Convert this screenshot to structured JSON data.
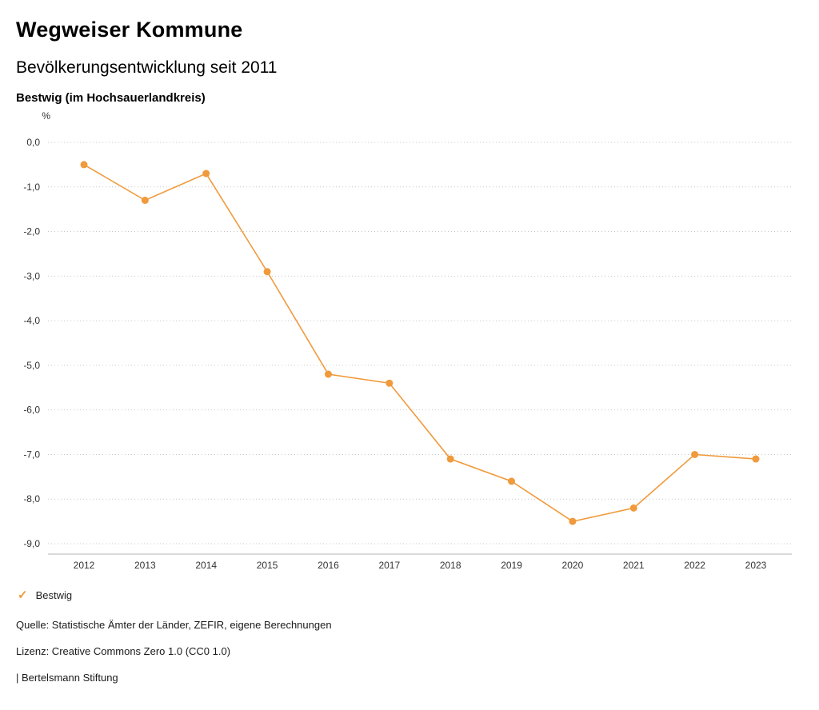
{
  "header": {
    "title": "Wegweiser Kommune",
    "subtitle": "Bevölkerungsentwicklung seit 2011",
    "region": "Bestwig (im Hochsauerlandkreis)"
  },
  "chart_data": {
    "type": "line",
    "title": "Bevölkerungsentwicklung seit 2011",
    "unit_label": "%",
    "xlabel": "",
    "ylabel": "%",
    "categories": [
      "2012",
      "2013",
      "2014",
      "2015",
      "2016",
      "2017",
      "2018",
      "2019",
      "2020",
      "2021",
      "2022",
      "2023"
    ],
    "series": [
      {
        "name": "Bestwig",
        "color": "#F09A3C",
        "values": [
          -0.5,
          -1.3,
          -0.7,
          -2.9,
          -5.2,
          -5.4,
          -7.1,
          -7.6,
          -8.5,
          -8.2,
          -7.0,
          -7.1
        ]
      }
    ],
    "ylim": [
      -9,
      0
    ],
    "yticks": [
      0,
      -1,
      -2,
      -3,
      -4,
      -5,
      -6,
      -7,
      -8,
      -9
    ],
    "ytick_labels": [
      "0,0",
      "-1,0",
      "-2,0",
      "-3,0",
      "-4,0",
      "-5,0",
      "-6,0",
      "-7,0",
      "-8,0",
      "-9,0"
    ],
    "grid": "horizontal-dotted",
    "legend_position": "bottom-left"
  },
  "legend": {
    "check_icon": "✓",
    "label": "Bestwig"
  },
  "footer": {
    "source": "Quelle: Statistische Ämter der Länder, ZEFIR, eigene Berechnungen",
    "license": "Lizenz: Creative Commons Zero 1.0 (CC0 1.0)",
    "attribution": "| Bertelsmann Stiftung"
  }
}
